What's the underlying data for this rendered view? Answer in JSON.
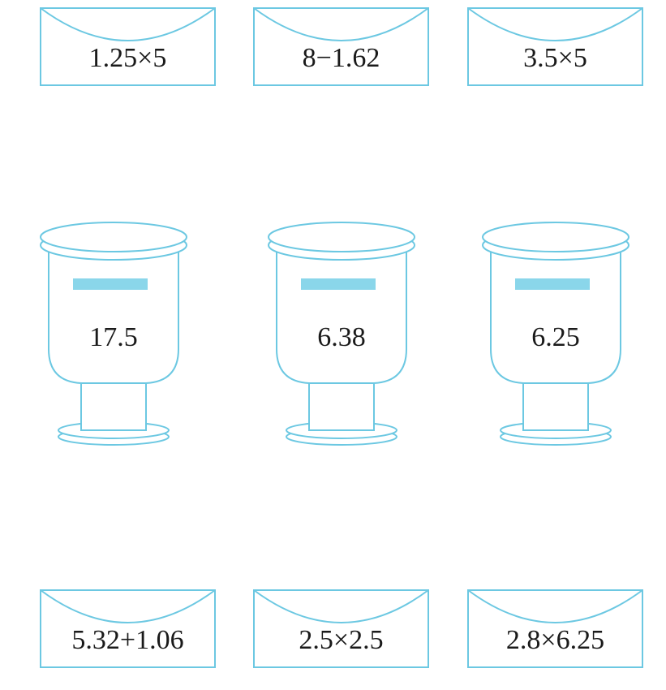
{
  "top_envelopes": [
    "1.25×5",
    "8−1.62",
    "3.5×5"
  ],
  "mailboxes": [
    "17.5",
    "6.38",
    "6.25"
  ],
  "bottom_envelopes": [
    "5.32+1.06",
    "2.5×2.5",
    "2.8×6.25"
  ]
}
